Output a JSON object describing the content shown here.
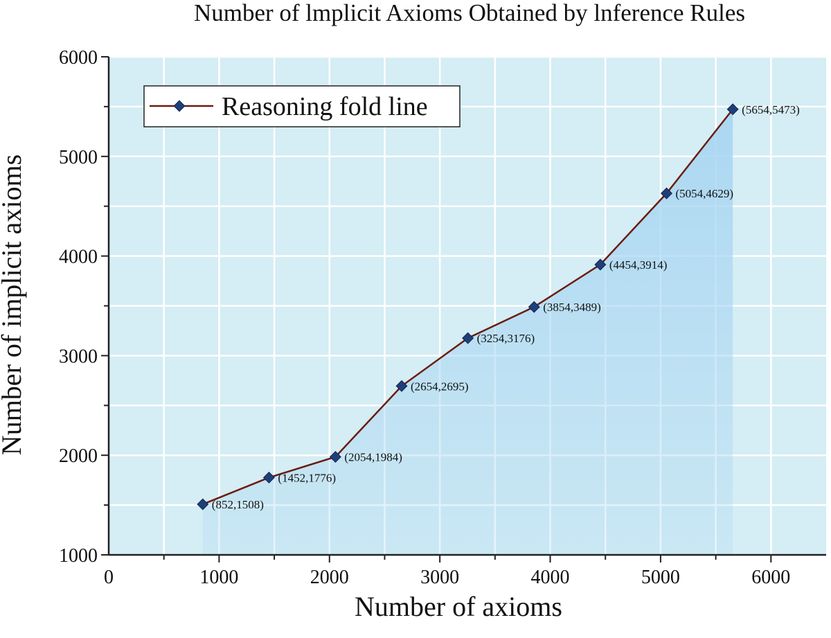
{
  "chart_data": {
    "type": "line",
    "title": "Number of lmplicit Axioms Obtained by lnference Rules",
    "xlabel": "Number of axioms",
    "ylabel": "Number of implicit axioms",
    "xlim": [
      0,
      6500
    ],
    "ylim": [
      1000,
      6000
    ],
    "x_ticks": [
      0,
      1000,
      2000,
      3000,
      4000,
      5000,
      6000
    ],
    "y_ticks": [
      1000,
      2000,
      3000,
      4000,
      5000,
      6000
    ],
    "x_ticks_labels": [
      "0",
      "1000",
      "2000",
      "3000",
      "4000",
      "5000",
      "6000"
    ],
    "y_ticks_labels": [
      "1000",
      "2000",
      "3000",
      "4000",
      "5000",
      "6000"
    ],
    "grid": true,
    "legend_position": "top-left",
    "series": [
      {
        "name": "Reasoning fold line",
        "x": [
          852,
          1452,
          2054,
          2654,
          3254,
          3854,
          4454,
          5054,
          5654
        ],
        "values": [
          1508,
          1776,
          1984,
          2695,
          3176,
          3489,
          3914,
          4629,
          5473
        ],
        "labels": [
          "(852,1508)",
          "(1452,1776)",
          "(2054,1984)",
          "(2654,2695)",
          "(3254,3176)",
          "(3854,3489)",
          "(4454,3914)",
          "(5054,4629)",
          "(5654,5473)"
        ]
      }
    ],
    "colors": {
      "plot_background": "#d5edf4",
      "area_fill": "#a9d6f2",
      "line": "#6b1b0e",
      "marker": "#1f3f7a",
      "grid": "#ffffff",
      "axis": "#222222"
    }
  }
}
